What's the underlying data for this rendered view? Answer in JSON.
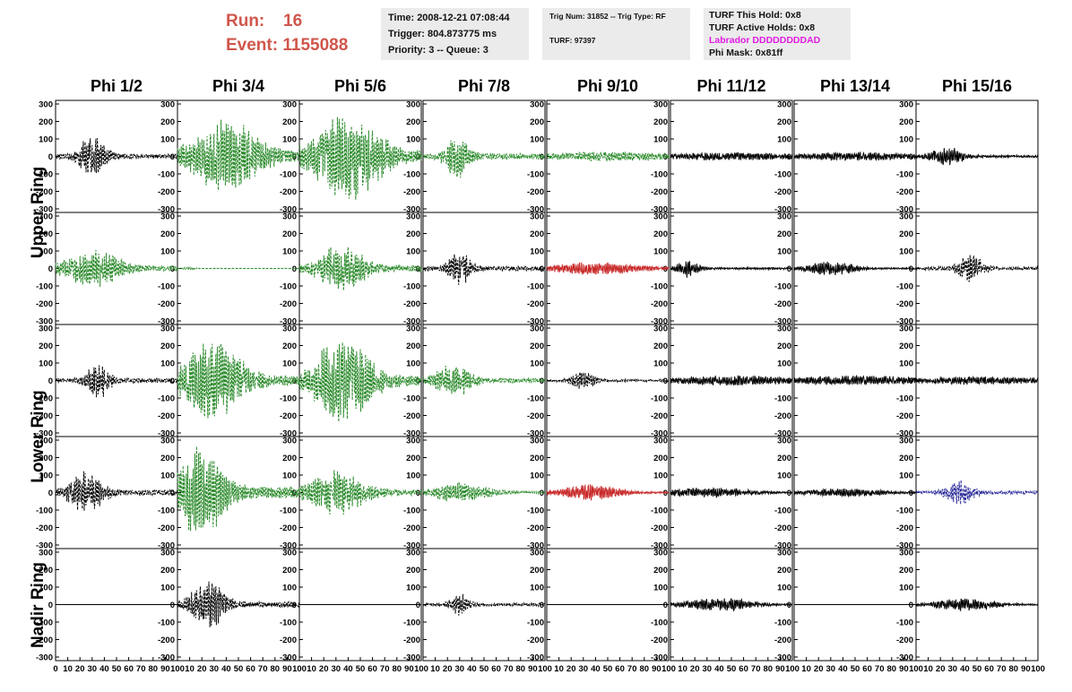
{
  "header": {
    "run_label": "Run:",
    "run_value": "16",
    "event_label": "Event:",
    "event_value": "1155088"
  },
  "info_box_1": {
    "time": "Time: 2008-12-21 07:08:44",
    "trigger": "Trigger: 804.873775 ms",
    "priority": "Priority: 3 -- Queue: 3"
  },
  "info_box_2": {
    "trig": "Trig Num: 31852 -- Trig Type: RF",
    "turf": "TURF: 97397"
  },
  "info_box_3": {
    "this_hold": "TURF This Hold: 0x8",
    "active_holds": "TURF Active Holds: 0x8",
    "labrador": "Labrador DDDDDDDDAD",
    "phi_mask": "Phi Mask: 0x81ff"
  },
  "columns": [
    "Phi 1/2",
    "Phi 3/4",
    "Phi 5/6",
    "Phi 7/8",
    "Phi 9/10",
    "Phi 11/12",
    "Phi 13/14",
    "Phi 15/16"
  ],
  "rings": [
    "Upper Ring",
    "Lower Ring",
    "Nadir Ring"
  ],
  "colors": {
    "header_red": "#d0564b",
    "black_trace": "#000000",
    "green_trace": "#2a8a2a",
    "red_trace": "#c82828",
    "blue_trace": "#2a2a9a",
    "info_bg": "#ebebeb",
    "labrador_magenta": "#e21be2"
  },
  "chart_data": {
    "type": "line",
    "x_range": [
      0,
      100
    ],
    "y_range": [
      -300,
      300
    ],
    "y_ticks": [
      -300,
      -200,
      -100,
      0,
      100,
      200,
      300
    ],
    "x_ticks": [
      0,
      10,
      20,
      30,
      40,
      50,
      60,
      70,
      80,
      90,
      100
    ],
    "x_tick_labels": [
      "0",
      "10",
      "20",
      "30",
      "40",
      "50",
      "60",
      "70",
      "80",
      "90",
      "100"
    ],
    "grid": false,
    "panel_rows": 5,
    "panel_cols": 8,
    "panels": [
      {
        "row": 0,
        "col": 0,
        "color": "black",
        "style": "dashed",
        "peak": 120,
        "center": 30,
        "width": 12
      },
      {
        "row": 0,
        "col": 1,
        "color": "green",
        "style": "dashed",
        "peak": 230,
        "center": 40,
        "width": 30
      },
      {
        "row": 0,
        "col": 2,
        "color": "green",
        "style": "dashed",
        "peak": 260,
        "center": 40,
        "width": 30
      },
      {
        "row": 0,
        "col": 3,
        "color": "green",
        "style": "dashed",
        "peak": 150,
        "center": 28,
        "width": 10
      },
      {
        "row": 0,
        "col": 4,
        "color": "green",
        "style": "dashed",
        "peak": 30,
        "center": 50,
        "width": 60
      },
      {
        "row": 0,
        "col": 5,
        "color": "black",
        "style": "solid",
        "peak": 25,
        "center": 50,
        "width": 60
      },
      {
        "row": 0,
        "col": 6,
        "color": "black",
        "style": "solid",
        "peak": 25,
        "center": 50,
        "width": 60
      },
      {
        "row": 0,
        "col": 7,
        "color": "black",
        "style": "solid",
        "peak": 60,
        "center": 25,
        "width": 14
      },
      {
        "row": 1,
        "col": 0,
        "color": "green",
        "style": "dashed",
        "peak": 120,
        "center": 30,
        "width": 25
      },
      {
        "row": 1,
        "col": 1,
        "color": "green",
        "style": "dashed",
        "peak": 10,
        "center": 10,
        "width": 5
      },
      {
        "row": 1,
        "col": 2,
        "color": "green",
        "style": "dashed",
        "peak": 150,
        "center": 35,
        "width": 20
      },
      {
        "row": 1,
        "col": 3,
        "color": "black",
        "style": "dashed",
        "peak": 110,
        "center": 30,
        "width": 10
      },
      {
        "row": 1,
        "col": 4,
        "color": "red",
        "style": "solid",
        "peak": 40,
        "center": 40,
        "width": 40
      },
      {
        "row": 1,
        "col": 5,
        "color": "black",
        "style": "solid",
        "peak": 55,
        "center": 15,
        "width": 10
      },
      {
        "row": 1,
        "col": 6,
        "color": "black",
        "style": "solid",
        "peak": 45,
        "center": 30,
        "width": 20
      },
      {
        "row": 1,
        "col": 7,
        "color": "black",
        "style": "dashed",
        "peak": 90,
        "center": 45,
        "width": 10
      },
      {
        "row": 2,
        "col": 0,
        "color": "black",
        "style": "dashed",
        "peak": 110,
        "center": 35,
        "width": 10
      },
      {
        "row": 2,
        "col": 1,
        "color": "green",
        "style": "dashed",
        "peak": 250,
        "center": 30,
        "width": 25
      },
      {
        "row": 2,
        "col": 2,
        "color": "green",
        "style": "dashed",
        "peak": 270,
        "center": 35,
        "width": 25
      },
      {
        "row": 2,
        "col": 3,
        "color": "green",
        "style": "dashed",
        "peak": 110,
        "center": 25,
        "width": 15
      },
      {
        "row": 2,
        "col": 4,
        "color": "black",
        "style": "dashed",
        "peak": 60,
        "center": 30,
        "width": 10
      },
      {
        "row": 2,
        "col": 5,
        "color": "black",
        "style": "solid",
        "peak": 30,
        "center": 50,
        "width": 60
      },
      {
        "row": 2,
        "col": 6,
        "color": "black",
        "style": "solid",
        "peak": 30,
        "center": 50,
        "width": 60
      },
      {
        "row": 2,
        "col": 7,
        "color": "black",
        "style": "solid",
        "peak": 25,
        "center": 50,
        "width": 60
      },
      {
        "row": 3,
        "col": 0,
        "color": "black",
        "style": "dashed",
        "peak": 130,
        "center": 25,
        "width": 15
      },
      {
        "row": 3,
        "col": 1,
        "color": "green",
        "style": "dashed",
        "peak": 290,
        "center": 20,
        "width": 20
      },
      {
        "row": 3,
        "col": 2,
        "color": "green",
        "style": "dashed",
        "peak": 140,
        "center": 30,
        "width": 25
      },
      {
        "row": 3,
        "col": 3,
        "color": "green",
        "style": "dashed",
        "peak": 60,
        "center": 30,
        "width": 25
      },
      {
        "row": 3,
        "col": 4,
        "color": "red",
        "style": "solid",
        "peak": 50,
        "center": 35,
        "width": 25
      },
      {
        "row": 3,
        "col": 5,
        "color": "black",
        "style": "solid",
        "peak": 30,
        "center": 30,
        "width": 40
      },
      {
        "row": 3,
        "col": 6,
        "color": "black",
        "style": "solid",
        "peak": 25,
        "center": 40,
        "width": 40
      },
      {
        "row": 3,
        "col": 7,
        "color": "blue",
        "style": "dashed",
        "peak": 80,
        "center": 35,
        "width": 12
      },
      {
        "row": 4,
        "col": 0,
        "color": "black",
        "style": "solid",
        "peak": 0,
        "center": 50,
        "width": 50
      },
      {
        "row": 4,
        "col": 1,
        "color": "black",
        "style": "dashed",
        "peak": 150,
        "center": 25,
        "width": 15
      },
      {
        "row": 4,
        "col": 2,
        "color": "black",
        "style": "solid",
        "peak": 0,
        "center": 50,
        "width": 50
      },
      {
        "row": 4,
        "col": 3,
        "color": "black",
        "style": "dashed",
        "peak": 80,
        "center": 30,
        "width": 8
      },
      {
        "row": 4,
        "col": 4,
        "color": "black",
        "style": "solid",
        "peak": 0,
        "center": 50,
        "width": 50
      },
      {
        "row": 4,
        "col": 5,
        "color": "black",
        "style": "solid",
        "peak": 40,
        "center": 40,
        "width": 30
      },
      {
        "row": 4,
        "col": 6,
        "color": "black",
        "style": "solid",
        "peak": 0,
        "center": 50,
        "width": 50
      },
      {
        "row": 4,
        "col": 7,
        "color": "black",
        "style": "solid",
        "peak": 35,
        "center": 40,
        "width": 30
      }
    ]
  }
}
